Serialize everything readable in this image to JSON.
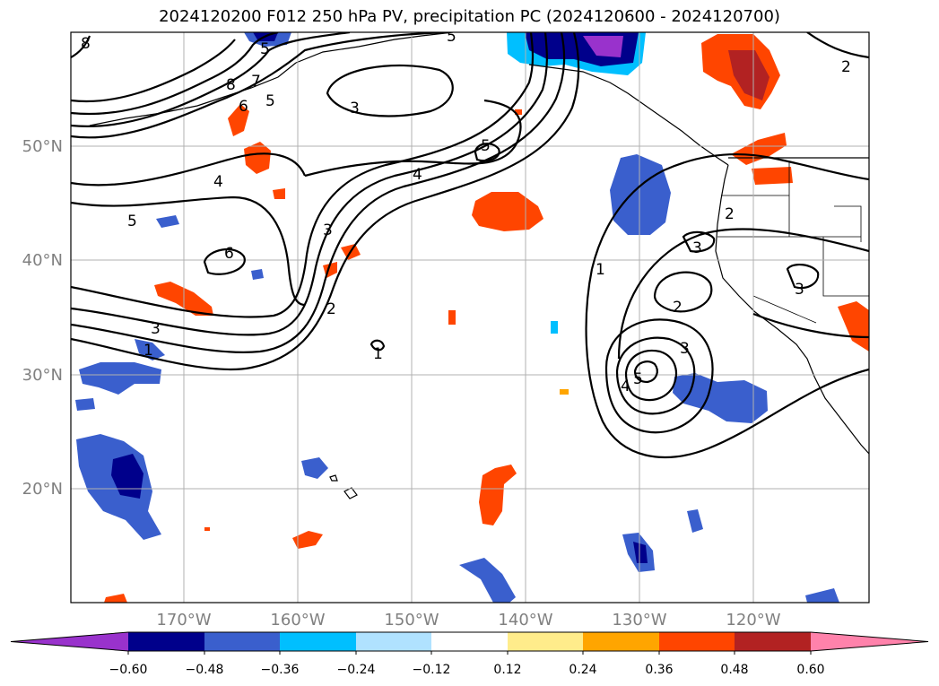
{
  "title": "2024120200 F012 250 hPa PV, precipitation PC (2024120600 - 2024120700)",
  "lat_labels": [
    "50°N",
    "40°N",
    "30°N",
    "20°N"
  ],
  "lon_labels": [
    "170°W",
    "160°W",
    "150°W",
    "140°W",
    "130°W",
    "120°W"
  ],
  "colorbar": {
    "colors": [
      "#9932CC",
      "#00008B",
      "#3A5FCD",
      "#00BFFF",
      "#B0E2FF",
      "#FFFFFF",
      "#FFEC8B",
      "#FFA500",
      "#FF4500",
      "#B22222",
      "#FF82AB"
    ],
    "tick_labels": [
      "−0.60",
      "−0.48",
      "−0.36",
      "−0.24",
      "−0.12",
      "0.12",
      "0.24",
      "0.36",
      "0.48",
      "0.60"
    ]
  },
  "contour_labels": [
    "8",
    "8",
    "7",
    "6",
    "5",
    "5",
    "3",
    "5",
    "4",
    "4",
    "5",
    "6",
    "3",
    "2",
    "1",
    "1",
    "2",
    "3",
    "2",
    "3",
    "3",
    "4",
    "5",
    "1",
    "2",
    "3",
    "5"
  ],
  "colors": {
    "grid": "#b0b0b0",
    "contour": "#000000",
    "tick_text": "#808080"
  }
}
